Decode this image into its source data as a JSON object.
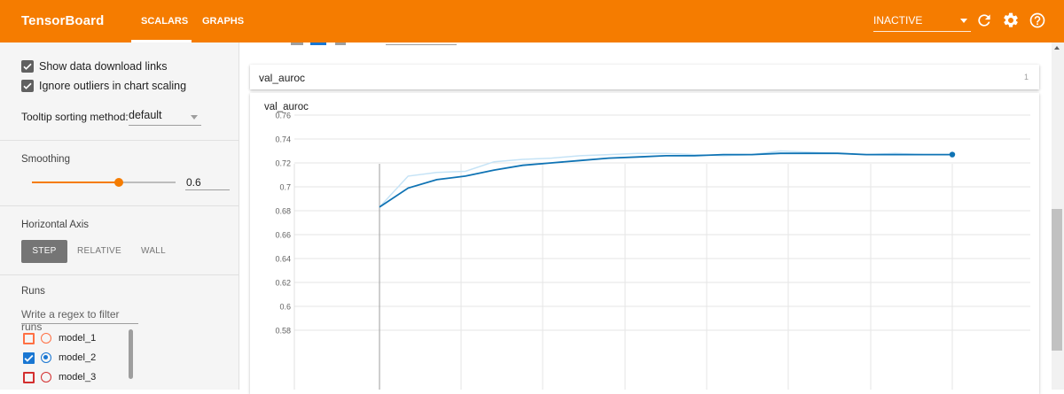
{
  "header": {
    "brand": "TensorBoard",
    "tabs": [
      {
        "label": "SCALARS",
        "active": true
      },
      {
        "label": "GRAPHS",
        "active": false
      }
    ],
    "status_select": "INACTIVE",
    "icons": [
      "refresh-icon",
      "gear-icon",
      "help-icon"
    ],
    "accent_color": "#f57c00"
  },
  "sidebar": {
    "options": [
      {
        "label": "Show data download links",
        "checked": true
      },
      {
        "label": "Ignore outliers in chart scaling",
        "checked": true
      }
    ],
    "tooltip_sorting": {
      "label": "Tooltip sorting method:",
      "value": "default"
    },
    "smoothing": {
      "title": "Smoothing",
      "value": "0.6",
      "fraction": 0.6
    },
    "horizontal_axis": {
      "title": "Horizontal Axis",
      "buttons": [
        {
          "label": "STEP",
          "selected": true
        },
        {
          "label": "RELATIVE",
          "selected": false
        },
        {
          "label": "WALL",
          "selected": false
        }
      ]
    },
    "runs": {
      "title": "Runs",
      "filter_placeholder": "Write a regex to filter runs",
      "items": [
        {
          "label": "model_1",
          "checked": false,
          "color": "#ff7043"
        },
        {
          "label": "model_2",
          "checked": true,
          "color": "#1976d2"
        },
        {
          "label": "model_3",
          "checked": false,
          "color": "#d32f2f"
        }
      ]
    }
  },
  "main": {
    "group": {
      "title": "val_auroc",
      "count": "1"
    },
    "chart": {
      "title": "val_auroc"
    }
  },
  "chart_data": {
    "type": "line",
    "title": "val_auroc",
    "ylim": [
      0.56,
      0.78
    ],
    "yticks": [
      "0.76",
      "0.74",
      "0.72",
      "0.7",
      "0.68",
      "0.66",
      "0.64",
      "0.62",
      "0.6",
      "0.58"
    ],
    "grid": true,
    "x": [
      0,
      1,
      2,
      3,
      4,
      5,
      6,
      7,
      8,
      9,
      10,
      11,
      12,
      13,
      14,
      15,
      16,
      17,
      18,
      19,
      20
    ],
    "series": [
      {
        "color": "#c5e3f6",
        "values": [
          0.683,
          0.709,
          0.712,
          0.713,
          0.721,
          0.723,
          0.724,
          0.726,
          0.727,
          0.728,
          0.728,
          0.727,
          0.726,
          0.727,
          0.73,
          0.729,
          0.728,
          0.727,
          0.728,
          0.727,
          0.727
        ]
      },
      {
        "color": "#0f73b4",
        "values": [
          0.683,
          0.699,
          0.706,
          0.709,
          0.714,
          0.718,
          0.72,
          0.722,
          0.724,
          0.725,
          0.726,
          0.726,
          0.727,
          0.727,
          0.728,
          0.728,
          0.728,
          0.727,
          0.727,
          0.727,
          0.727
        ]
      }
    ]
  }
}
